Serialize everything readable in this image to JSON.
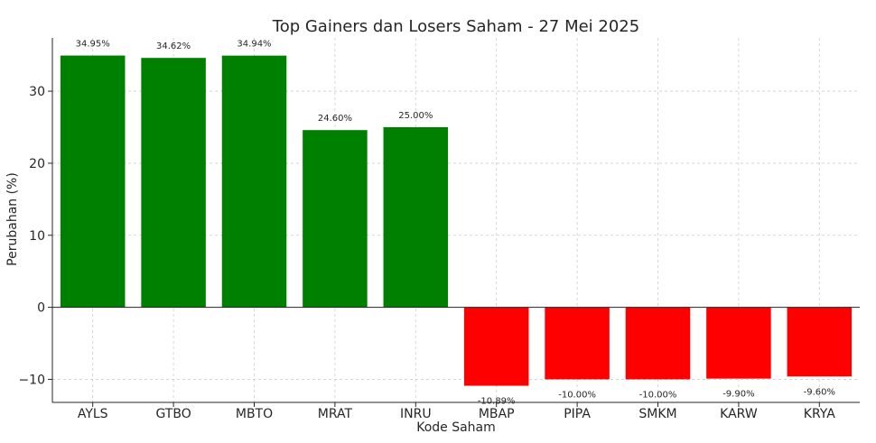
{
  "chart_data": {
    "type": "bar",
    "title": "Top Gainers dan Losers Saham - 27 Mei 2025",
    "xlabel": "Kode Saham",
    "ylabel": "Perubahan (%)",
    "categories": [
      "AYLS",
      "GTBO",
      "MBTO",
      "MRAT",
      "INRU",
      "MBAP",
      "PIPA",
      "SMKM",
      "KARW",
      "KRYA"
    ],
    "values": [
      34.95,
      34.62,
      34.94,
      24.6,
      25.0,
      -10.89,
      -10.0,
      -10.0,
      -9.9,
      -9.6
    ],
    "data_labels": [
      "34.95%",
      "34.62%",
      "34.94%",
      "24.60%",
      "25.00%",
      "-10.89%",
      "-10.00%",
      "-10.00%",
      "-9.90%",
      "-9.60%"
    ],
    "colors": [
      "#008000",
      "#008000",
      "#008000",
      "#008000",
      "#008000",
      "#ff0000",
      "#ff0000",
      "#ff0000",
      "#ff0000",
      "#ff0000"
    ],
    "ylim": [
      -13.2,
      37.4
    ],
    "yticks": [
      -10,
      0,
      10,
      20,
      30
    ],
    "ytick_labels": [
      "−10",
      "0",
      "10",
      "20",
      "30"
    ],
    "grid": true
  }
}
